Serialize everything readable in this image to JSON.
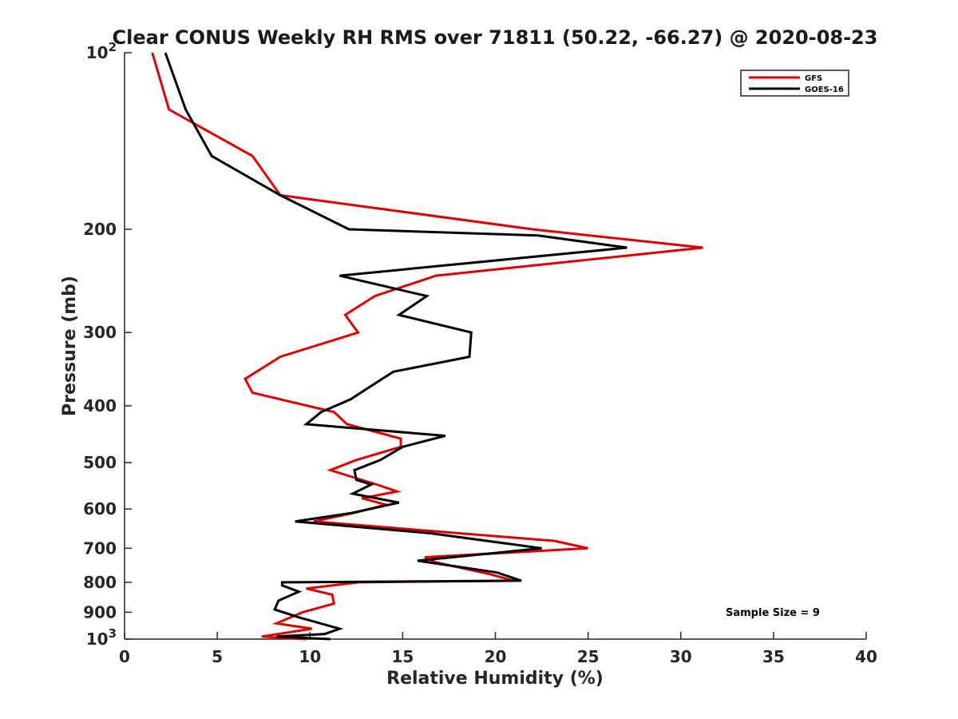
{
  "chart_data": {
    "type": "line",
    "title": "Clear CONUS Weekly RH RMS over 71811 (50.22, -66.27) @ 2020-08-23",
    "xlabel": "Relative Humidity (%)",
    "ylabel": "Pressure (mb)",
    "xlim": [
      0,
      40
    ],
    "ylim": [
      100,
      1000
    ],
    "y_scale": "log",
    "y_reversed": true,
    "grid": false,
    "legend_position": "top-right",
    "x_ticks": [
      "0",
      "5",
      "10",
      "15",
      "20",
      "25",
      "30",
      "35",
      "40"
    ],
    "y_ticks": [
      {
        "value": 100,
        "label": "10",
        "sup": "2"
      },
      {
        "value": 200,
        "label": "200",
        "sup": ""
      },
      {
        "value": 300,
        "label": "300",
        "sup": ""
      },
      {
        "value": 400,
        "label": "400",
        "sup": ""
      },
      {
        "value": 500,
        "label": "500",
        "sup": ""
      },
      {
        "value": 600,
        "label": "600",
        "sup": ""
      },
      {
        "value": 700,
        "label": "700",
        "sup": ""
      },
      {
        "value": 800,
        "label": "800",
        "sup": ""
      },
      {
        "value": 900,
        "label": "900",
        "sup": ""
      },
      {
        "value": 1000,
        "label": "10",
        "sup": "3"
      }
    ],
    "annotation": "Sample Size = 9",
    "series": [
      {
        "name": "GFS",
        "color": "#e00000",
        "points": [
          [
            1.5,
            100
          ],
          [
            2.4,
            125
          ],
          [
            6.9,
            150
          ],
          [
            8.4,
            175
          ],
          [
            22.0,
            200
          ],
          [
            31.2,
            215
          ],
          [
            16.8,
            240
          ],
          [
            13.5,
            260
          ],
          [
            11.9,
            280
          ],
          [
            12.6,
            300
          ],
          [
            8.4,
            330
          ],
          [
            6.5,
            360
          ],
          [
            6.9,
            380
          ],
          [
            11.3,
            410
          ],
          [
            12.0,
            430
          ],
          [
            14.9,
            455
          ],
          [
            14.9,
            470
          ],
          [
            12.5,
            495
          ],
          [
            11.1,
            515
          ],
          [
            13.6,
            545
          ],
          [
            14.7,
            560
          ],
          [
            12.8,
            575
          ],
          [
            14.1,
            590
          ],
          [
            12.3,
            610
          ],
          [
            10.2,
            630
          ],
          [
            15.5,
            650
          ],
          [
            23.2,
            680
          ],
          [
            25.0,
            700
          ],
          [
            16.2,
            725
          ],
          [
            16.8,
            740
          ],
          [
            19.7,
            775
          ],
          [
            21.0,
            795
          ],
          [
            12.6,
            800
          ],
          [
            9.8,
            820
          ],
          [
            11.2,
            840
          ],
          [
            11.3,
            870
          ],
          [
            9.6,
            900
          ],
          [
            8.2,
            940
          ],
          [
            10.1,
            960
          ],
          [
            7.4,
            990
          ],
          [
            9.8,
            1000
          ]
        ]
      },
      {
        "name": "GOES-16",
        "color": "#000000",
        "points": [
          [
            2.2,
            100
          ],
          [
            3.3,
            125
          ],
          [
            4.7,
            150
          ],
          [
            8.4,
            175
          ],
          [
            12.1,
            200
          ],
          [
            22.3,
            205
          ],
          [
            27.1,
            215
          ],
          [
            11.6,
            240
          ],
          [
            16.3,
            260
          ],
          [
            14.8,
            280
          ],
          [
            18.7,
            300
          ],
          [
            18.6,
            330
          ],
          [
            14.5,
            350
          ],
          [
            13.3,
            370
          ],
          [
            12.2,
            390
          ],
          [
            10.6,
            410
          ],
          [
            9.8,
            430
          ],
          [
            17.3,
            450
          ],
          [
            15.0,
            470
          ],
          [
            13.8,
            495
          ],
          [
            12.4,
            515
          ],
          [
            12.5,
            535
          ],
          [
            13.3,
            545
          ],
          [
            12.3,
            565
          ],
          [
            14.8,
            585
          ],
          [
            12.2,
            610
          ],
          [
            9.2,
            630
          ],
          [
            16.5,
            660
          ],
          [
            22.5,
            700
          ],
          [
            15.8,
            735
          ],
          [
            20.1,
            770
          ],
          [
            21.4,
            795
          ],
          [
            8.5,
            800
          ],
          [
            8.5,
            810
          ],
          [
            9.4,
            830
          ],
          [
            8.3,
            860
          ],
          [
            8.1,
            890
          ],
          [
            9.5,
            920
          ],
          [
            11.6,
            960
          ],
          [
            10.8,
            980
          ],
          [
            8.2,
            990
          ],
          [
            11.1,
            1000
          ]
        ]
      }
    ]
  }
}
